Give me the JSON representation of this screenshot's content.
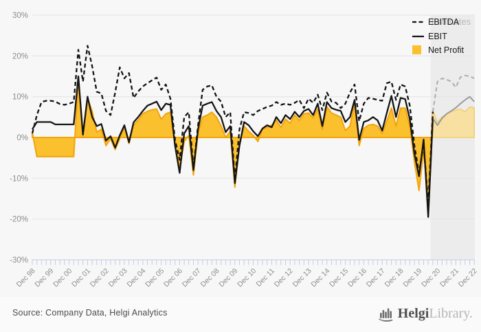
{
  "chart_data": {
    "type": "area",
    "title": "",
    "legend": [
      "EBITDA",
      "EBIT",
      "Net Profit"
    ],
    "estimates_label": "Estimates",
    "y_ticks": [
      "30%",
      "20%",
      "10%",
      "0%",
      "-10%",
      "-20%",
      "-30%"
    ],
    "y_tick_values": [
      30,
      20,
      10,
      0,
      -10,
      -20,
      -30
    ],
    "ylim": [
      -30,
      30
    ],
    "grid": true,
    "legend_position": "top-right",
    "x_labels": [
      "Dec 98",
      "Dec 99",
      "Dec 00",
      "Dec 01",
      "Dec 02",
      "Dec 03",
      "Dec 04",
      "Dec 05",
      "Dec 06",
      "Dec 07",
      "Dec 08",
      "Dec 09",
      "Dec 10",
      "Dec 11",
      "Dec 12",
      "Dec 13",
      "Dec 14",
      "Dec 15",
      "Dec 16",
      "Dec 17",
      "Dec 18",
      "Dec 19",
      "Dec 20",
      "Dec 21",
      "Dec 22"
    ],
    "quarters_per_label": 4,
    "n_points": 97,
    "estimates_start_index": 87,
    "series": [
      {
        "name": "EBITDA",
        "type": "line",
        "style": "dashed",
        "unit": "%",
        "values": [
          1.0,
          5.5,
          8.7,
          9.0,
          9.0,
          8.8,
          8.2,
          8.0,
          8.3,
          8.7,
          21.5,
          13.7,
          22.5,
          17.5,
          11.2,
          10.8,
          6.5,
          5.5,
          11.0,
          17.2,
          14.5,
          15.8,
          9.7,
          11.3,
          12.5,
          13.3,
          14.0,
          14.7,
          11.7,
          13.0,
          9.5,
          -0.5,
          -5.5,
          5.0,
          6.2,
          -7.5,
          3.0,
          11.7,
          12.5,
          12.8,
          10.0,
          8.8,
          5.0,
          6.2,
          -10.5,
          2.0,
          6.2,
          6.0,
          5.5,
          6.5,
          7.0,
          7.5,
          7.8,
          8.7,
          8.0,
          8.3,
          8.0,
          8.5,
          9.2,
          7.2,
          9.5,
          8.5,
          10.5,
          6.7,
          11.0,
          8.8,
          8.5,
          7.2,
          8.3,
          11.0,
          13.0,
          4.0,
          8.3,
          9.7,
          9.5,
          9.2,
          9.0,
          13.3,
          13.7,
          9.2,
          13.0,
          12.5,
          7.8,
          -2.0,
          -8.8,
          -1.5,
          -16.5,
          6.3,
          13.7,
          14.5,
          14.2,
          13.7,
          12.3,
          14.8,
          15.2,
          15.0,
          14.5
        ]
      },
      {
        "name": "EBIT",
        "type": "line",
        "style": "solid",
        "unit": "%",
        "values": [
          2.0,
          3.8,
          3.8,
          3.8,
          3.8,
          3.2,
          3.2,
          3.2,
          3.2,
          3.2,
          15.0,
          0.7,
          10.0,
          5.0,
          2.8,
          3.3,
          -0.8,
          0.3,
          -2.5,
          0.5,
          3.0,
          -1.2,
          3.7,
          5.0,
          6.5,
          7.8,
          8.3,
          8.8,
          6.7,
          8.3,
          8.0,
          -2.0,
          -8.7,
          1.0,
          2.8,
          -8.0,
          2.0,
          7.8,
          8.3,
          8.7,
          6.5,
          5.0,
          1.3,
          2.8,
          -11.2,
          -2.0,
          3.8,
          3.0,
          1.5,
          0.3,
          2.2,
          3.0,
          2.5,
          5.0,
          3.5,
          5.5,
          4.5,
          6.3,
          5.0,
          6.5,
          7.0,
          5.5,
          8.3,
          2.8,
          8.7,
          7.2,
          6.8,
          6.5,
          3.8,
          5.0,
          9.2,
          -0.6,
          3.8,
          4.2,
          5.0,
          4.2,
          1.7,
          6.0,
          10.2,
          5.0,
          9.7,
          9.4,
          4.5,
          -4.0,
          -9.5,
          -0.5,
          -19.5,
          4.7,
          3.0,
          4.7,
          5.8,
          6.5,
          7.3,
          8.3,
          9.2,
          10.0,
          8.8
        ]
      },
      {
        "name": "Net Profit",
        "type": "area",
        "unit": "%",
        "values": [
          1.2,
          -4.7,
          -4.7,
          -4.7,
          -4.7,
          -4.7,
          -4.7,
          -4.7,
          -4.7,
          -4.7,
          14.0,
          0.3,
          9.5,
          6.5,
          1.3,
          2.0,
          -2.0,
          -0.3,
          -3.0,
          -0.3,
          2.5,
          -1.5,
          3.0,
          4.2,
          5.8,
          6.4,
          6.8,
          7.0,
          4.5,
          5.8,
          6.2,
          -2.0,
          -7.5,
          -1.0,
          0.5,
          -9.2,
          1.0,
          5.0,
          5.5,
          6.2,
          5.0,
          2.8,
          0.0,
          1.5,
          -12.2,
          -2.0,
          2.8,
          1.5,
          0.5,
          -1.0,
          2.0,
          2.5,
          3.0,
          4.2,
          2.5,
          4.5,
          3.5,
          5.5,
          4.2,
          5.8,
          6.0,
          4.8,
          7.0,
          2.0,
          7.5,
          6.0,
          5.5,
          5.0,
          1.7,
          2.8,
          8.3,
          -2.0,
          2.2,
          3.0,
          3.2,
          2.8,
          1.0,
          4.0,
          7.2,
          2.8,
          7.2,
          7.2,
          2.8,
          -6.0,
          -13.0,
          -3.3,
          -15.0,
          6.7,
          3.7,
          5.0,
          5.8,
          6.3,
          6.7,
          7.0,
          6.3,
          7.5,
          7.3
        ]
      }
    ],
    "colors": {
      "net_profit_fill": "#FBC02E",
      "net_profit_stroke": "#F1A40B",
      "net_profit_fill_est": "#F8DFA2",
      "net_profit_stroke_est": "#F0CD72",
      "line_black": "#141414",
      "line_gray": "#9B9B9B",
      "dash_gray": "#ACACAC",
      "estimates_band": "#ECECEC",
      "gridline": "#E3E3E3",
      "tick": "#C3CBE5",
      "axis_text": "#8C8C8C",
      "estimates_text": "#B8B8B8",
      "legend_text": "#1A1A1A"
    }
  },
  "footer": {
    "source": "Source: Company Data, Helgi Analytics",
    "logo_brand": "Helgi",
    "logo_suffix": "Library",
    "logo_period": "."
  }
}
